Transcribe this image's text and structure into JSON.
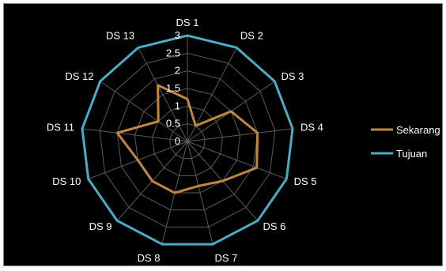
{
  "chart_data": {
    "type": "radar",
    "categories": [
      "DS 1",
      "DS 2",
      "DS 3",
      "DS 4",
      "DS 5",
      "DS 6",
      "DS 7",
      "DS 8",
      "DS 9",
      "DS 10",
      "DS 11",
      "DS 12",
      "DS 13"
    ],
    "rlim": [
      0,
      3
    ],
    "ticks": [
      "0",
      "0.5",
      "1",
      "1.5",
      "2",
      "2.5",
      "3"
    ],
    "grid": true,
    "legend": "right",
    "series": [
      {
        "name": "Sekarang",
        "color": "#c0873d",
        "values": [
          1.2,
          0.5,
          1.5,
          2.0,
          2.1,
          1.5,
          1.3,
          1.5,
          1.5,
          1.5,
          2.0,
          1.0,
          1.8
        ]
      },
      {
        "name": "Tujuan",
        "color": "#4bacc6",
        "values": [
          3,
          3,
          3,
          3,
          3,
          3,
          3,
          3,
          3,
          3,
          3,
          3,
          3
        ]
      }
    ]
  }
}
